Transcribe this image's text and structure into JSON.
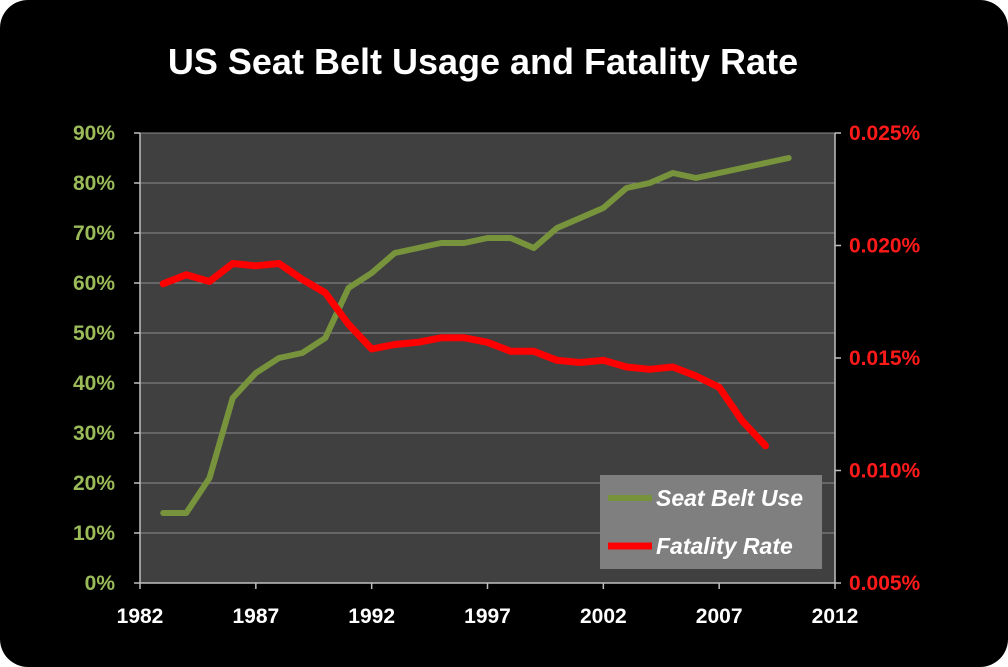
{
  "chart_data": {
    "type": "line",
    "title": "US Seat Belt Usage and Fatality Rate",
    "x_ticks": [
      "1982",
      "1987",
      "1992",
      "1997",
      "2002",
      "2007",
      "2012"
    ],
    "xlim": [
      1982,
      2012
    ],
    "y_left": {
      "ticks": [
        "0%",
        "10%",
        "20%",
        "30%",
        "40%",
        "50%",
        "60%",
        "70%",
        "80%",
        "90%"
      ],
      "ylim": [
        0,
        90
      ]
    },
    "y_right": {
      "ticks": [
        "0.005%",
        "0.010%",
        "0.015%",
        "0.020%",
        "0.025%"
      ],
      "ylim": [
        0.005,
        0.025
      ]
    },
    "legend_position": "bottom-right",
    "series": [
      {
        "name": "Seat Belt Use",
        "axis": "left",
        "color": "#77933c",
        "x": [
          1983,
          1984,
          1985,
          1986,
          1987,
          1988,
          1989,
          1990,
          1991,
          1992,
          1993,
          1994,
          1995,
          1996,
          1997,
          1998,
          1999,
          2000,
          2001,
          2002,
          2003,
          2004,
          2005,
          2006,
          2007,
          2008,
          2009,
          2010
        ],
        "values": [
          14,
          14,
          21,
          37,
          42,
          45,
          46,
          49,
          59,
          62,
          66,
          67,
          68,
          68,
          69,
          69,
          67,
          71,
          73,
          75,
          79,
          80,
          82,
          81,
          82,
          83,
          84,
          85
        ]
      },
      {
        "name": "Fatality Rate",
        "axis": "right",
        "color": "#ff0000",
        "x": [
          1983,
          1984,
          1985,
          1986,
          1987,
          1988,
          1989,
          1990,
          1991,
          1992,
          1993,
          1994,
          1995,
          1996,
          1997,
          1998,
          1999,
          2000,
          2001,
          2002,
          2003,
          2004,
          2005,
          2006,
          2007,
          2008,
          2009
        ],
        "values": [
          0.0183,
          0.0187,
          0.0184,
          0.0192,
          0.0191,
          0.0192,
          0.0185,
          0.0179,
          0.0165,
          0.0154,
          0.0156,
          0.0157,
          0.0159,
          0.0159,
          0.0157,
          0.0153,
          0.0153,
          0.0149,
          0.0148,
          0.0149,
          0.0146,
          0.0145,
          0.0146,
          0.0142,
          0.0137,
          0.0122,
          0.0111
        ]
      }
    ]
  }
}
